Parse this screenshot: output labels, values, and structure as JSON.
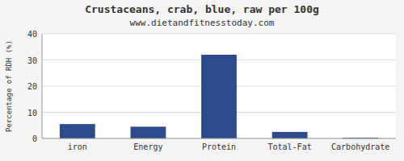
{
  "chart_data": {
    "type": "bar",
    "title": "Crustaceans, crab, blue, raw per 100g",
    "subtitle": "www.dietandfitnesstoday.com",
    "ylabel": "Percentage of RDH (%)",
    "categories": [
      "iron",
      "Energy",
      "Protein",
      "Total-Fat",
      "Carbohydrate"
    ],
    "values": [
      5.5,
      4.5,
      32.0,
      2.5,
      0.3
    ],
    "color": "#2b4b8c",
    "ylim": [
      0,
      40
    ],
    "yticks": [
      0,
      10,
      20,
      30,
      40
    ],
    "grid": true
  }
}
